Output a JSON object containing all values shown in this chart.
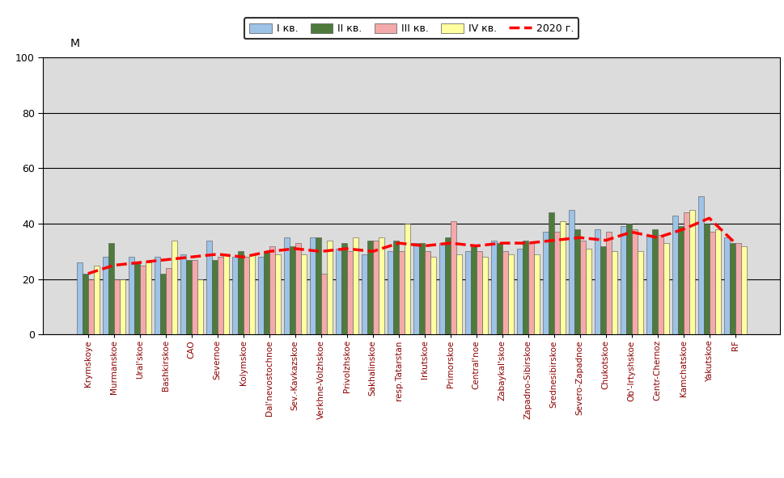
{
  "categories": [
    "Krymskoye",
    "Murmanskoe",
    "Ural'skoe",
    "Bashkirskoe",
    "CAO",
    "Severnoe",
    "Kolymskoe",
    "Dal'nevostochnoe",
    "Sev.-Kavkazskoe",
    "Verkhne-Volzhskoe",
    "Privolzhskoe",
    "Sakhalinskoe",
    "resp.Tatarstan",
    "Irkutskoe",
    "Primorskoe",
    "Central'noe",
    "Zabaykal'skoe",
    "Zapadno-Sibirskoe",
    "Srednesibirskoe",
    "Severo-Zapadnoe",
    "Chukotskoe",
    "Ob'-Irtyshskoe",
    "Centr-Chernoz",
    "Kamchatskoe",
    "Yakutskoe",
    "RF"
  ],
  "bar_q1": [
    26,
    28,
    28,
    28,
    29,
    34,
    28,
    28,
    35,
    35,
    31,
    29,
    30,
    33,
    33,
    30,
    34,
    31,
    37,
    45,
    38,
    39,
    36,
    43,
    50,
    35
  ],
  "bar_q2": [
    22,
    33,
    26,
    22,
    27,
    27,
    30,
    30,
    32,
    35,
    33,
    34,
    34,
    33,
    35,
    32,
    33,
    34,
    44,
    38,
    32,
    40,
    38,
    39,
    40,
    33
  ],
  "bar_q3": [
    20,
    20,
    25,
    24,
    27,
    28,
    28,
    32,
    33,
    22,
    30,
    34,
    30,
    30,
    41,
    30,
    30,
    33,
    37,
    34,
    37,
    38,
    36,
    44,
    37,
    33
  ],
  "bar_q4": [
    25,
    20,
    26,
    34,
    20,
    29,
    29,
    29,
    29,
    34,
    35,
    35,
    40,
    28,
    29,
    28,
    29,
    29,
    41,
    31,
    30,
    30,
    33,
    45,
    38,
    32
  ],
  "line_2020": [
    22,
    25,
    26,
    27,
    28,
    29,
    28,
    30,
    31,
    30,
    31,
    30,
    33,
    32,
    33,
    32,
    33,
    33,
    34,
    35,
    34,
    37,
    35,
    38,
    42,
    33
  ],
  "color_q1": "#9DC3E6",
  "color_q2": "#4E7A3B",
  "color_q3": "#F4AAAA",
  "color_q4": "#FFFFA0",
  "color_line": "#FF0000",
  "ylim": [
    0,
    100
  ],
  "yticks": [
    0,
    20,
    40,
    60,
    80,
    100
  ],
  "ylabel": "М",
  "legend_labels": [
    "I кв.",
    "II кв.",
    "III кв.",
    "IV кв.",
    "2020 г."
  ],
  "background_color": "#DCDCDC",
  "bar_width": 0.22,
  "grid_color": "#000000",
  "tick_color": "#8B0000"
}
